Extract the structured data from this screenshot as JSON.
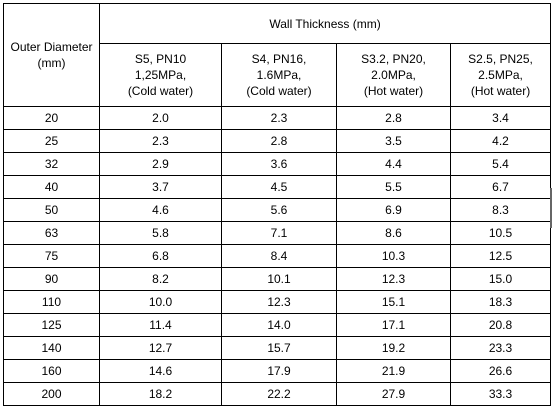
{
  "table": {
    "outer_diameter_header": [
      "Outer Diameter",
      "(mm)"
    ],
    "wall_thickness_header": "Wall Thickness  (mm)",
    "columns": [
      [
        "S5, PN10",
        "1,25MPa,",
        "(Cold water)"
      ],
      [
        "S4, PN16,",
        "1.6MPa,",
        "(Cold water)"
      ],
      [
        "S3.2, PN20,",
        "2.0MPa,",
        "(Hot water)"
      ],
      [
        "S2.5, PN25,",
        "2.5MPa,",
        "(Hot water)"
      ]
    ],
    "rows": [
      [
        "20",
        "2.0",
        "2.3",
        "2.8",
        "3.4"
      ],
      [
        "25",
        "2.3",
        "2.8",
        "3.5",
        "4.2"
      ],
      [
        "32",
        "2.9",
        "3.6",
        "4.4",
        "5.4"
      ],
      [
        "40",
        "3.7",
        "4.5",
        "5.5",
        "6.7"
      ],
      [
        "50",
        "4.6",
        "5.6",
        "6.9",
        "8.3"
      ],
      [
        "63",
        "5.8",
        "7.1",
        "8.6",
        "10.5"
      ],
      [
        "75",
        "6.8",
        "8.4",
        "10.3",
        "12.5"
      ],
      [
        "90",
        "8.2",
        "10.1",
        "12.3",
        "15.0"
      ],
      [
        "110",
        "10.0",
        "12.3",
        "15.1",
        "18.3"
      ],
      [
        "125",
        "11.4",
        "14.0",
        "17.1",
        "20.8"
      ],
      [
        "140",
        "12.7",
        "15.7",
        "19.2",
        "23.3"
      ],
      [
        "160",
        "14.6",
        "17.9",
        "21.9",
        "26.6"
      ],
      [
        "200",
        "18.2",
        "22.2",
        "27.9",
        "33.3"
      ]
    ]
  }
}
